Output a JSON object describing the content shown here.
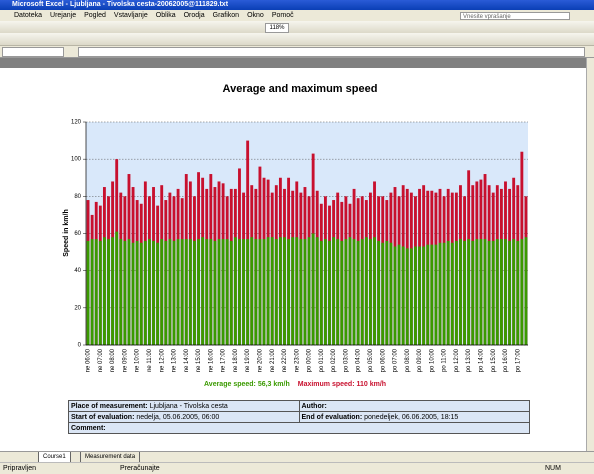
{
  "window": {
    "title": "Microsoft Excel - Ljubljana - Tivolska cesta-20062005@111829.txt",
    "help_box": "Vnesite vprašanje",
    "zoom": "118%"
  },
  "menu": [
    "Datoteka",
    "Urejanje",
    "Pogled",
    "Vstavljanje",
    "Oblika",
    "Orodja",
    "Grafikon",
    "Okno",
    "Pomoč"
  ],
  "sheet_tabs": [
    "Course1",
    "Measurement data"
  ],
  "status": {
    "left": "Pripravljen",
    "middle": "Preračunajte",
    "right": "NUM"
  },
  "chart_data": {
    "type": "bar",
    "title": "Average and maximum speed",
    "y_label": "Speed in km/h",
    "categories": [
      "ne 06:00",
      null,
      null,
      "ne 07:00",
      null,
      null,
      "ne 08:00",
      null,
      null,
      "ne 09:00",
      null,
      null,
      "ne 10:00",
      null,
      null,
      "ne 11:00",
      null,
      null,
      "ne 12:00",
      null,
      null,
      "ne 13:00",
      null,
      null,
      "ne 14:00",
      null,
      null,
      "ne 15:00",
      null,
      null,
      "ne 16:00",
      null,
      null,
      "ne 17:00",
      null,
      null,
      "ne 18:00",
      null,
      null,
      "ne 19:00",
      null,
      null,
      "ne 20:00",
      null,
      null,
      "ne 21:00",
      null,
      null,
      "ne 22:00",
      null,
      null,
      "ne 23:00",
      null,
      null,
      "po 00:00",
      null,
      null,
      "po 01:00",
      null,
      null,
      "po 02:00",
      null,
      null,
      "po 03:00",
      null,
      null,
      "po 04:00",
      null,
      null,
      "po 05:00",
      null,
      null,
      "po 06:00",
      null,
      null,
      "po 07:00",
      null,
      null,
      "po 08:00",
      null,
      null,
      "po 09:00",
      null,
      null,
      "po 10:00",
      null,
      null,
      "po 11:00",
      null,
      null,
      "po 12:00",
      null,
      null,
      "po 13:00",
      null,
      null,
      "po 14:00",
      null,
      null,
      "po 15:00",
      null,
      null,
      "po 16:00",
      null,
      null,
      "po 17:00",
      null,
      null
    ],
    "series": [
      {
        "name": "Maximum speed: 110 km/h",
        "color": "#c8102e",
        "values": [
          78,
          70,
          77,
          75,
          85,
          80,
          88,
          100,
          82,
          80,
          92,
          85,
          78,
          76,
          88,
          80,
          85,
          75,
          86,
          78,
          82,
          80,
          84,
          79,
          92,
          88,
          80,
          93,
          90,
          84,
          92,
          85,
          88,
          87,
          80,
          84,
          84,
          95,
          82,
          110,
          86,
          84,
          96,
          90,
          89,
          82,
          86,
          90,
          84,
          90,
          83,
          88,
          82,
          85,
          80,
          103,
          83,
          76,
          80,
          75,
          78,
          82,
          77,
          80,
          76,
          84,
          79,
          80,
          78,
          82,
          88,
          80,
          80,
          78,
          82,
          85,
          80,
          86,
          84,
          82,
          80,
          84,
          86,
          83,
          83,
          82,
          84,
          80,
          84,
          82,
          82,
          86,
          80,
          94,
          86,
          88,
          89,
          92,
          86,
          82,
          86,
          84,
          88,
          84,
          90,
          86,
          104,
          80
        ]
      },
      {
        "name": "Average speed: 56,3 km/h",
        "color": "#3a9a00",
        "values": [
          56,
          57,
          57,
          56,
          58,
          57,
          58,
          61,
          57,
          56,
          57,
          55,
          56,
          55,
          56,
          57,
          56,
          55,
          57,
          56,
          57,
          56,
          57,
          57,
          57,
          57,
          56,
          57,
          58,
          57,
          57,
          56,
          57,
          57,
          57,
          56,
          58,
          57,
          57,
          57,
          58,
          57,
          57,
          57,
          58,
          58,
          57,
          58,
          58,
          57,
          58,
          58,
          57,
          57,
          58,
          60,
          58,
          56,
          57,
          56,
          58,
          57,
          56,
          57,
          58,
          57,
          56,
          57,
          58,
          57,
          58,
          56,
          55,
          56,
          55,
          53,
          54,
          53,
          52,
          52,
          53,
          53,
          53,
          54,
          54,
          54,
          55,
          55,
          56,
          55,
          56,
          57,
          56,
          57,
          56,
          57,
          57,
          57,
          56,
          56,
          57,
          57,
          57,
          56,
          57,
          56,
          57,
          58
        ]
      }
    ],
    "legend_order": [
      1,
      0
    ],
    "ylim": [
      0,
      120
    ],
    "yticks": [
      0,
      20,
      40,
      60,
      80,
      100,
      120
    ],
    "grid": true
  },
  "table": {
    "rows": [
      [
        {
          "label": "Place of measurement:",
          "value": "Ljubljana - Tivolska cesta"
        },
        {
          "label": "Author:"
        }
      ],
      [
        {
          "label": "Start of evaluation:",
          "value": "nedelja, 05.06.2005, 06:00"
        },
        {
          "label": "End of evaluation:",
          "value": "ponedeljek, 06.06.2005, 18:15"
        }
      ],
      [
        {
          "label": "Comment:"
        }
      ]
    ]
  }
}
